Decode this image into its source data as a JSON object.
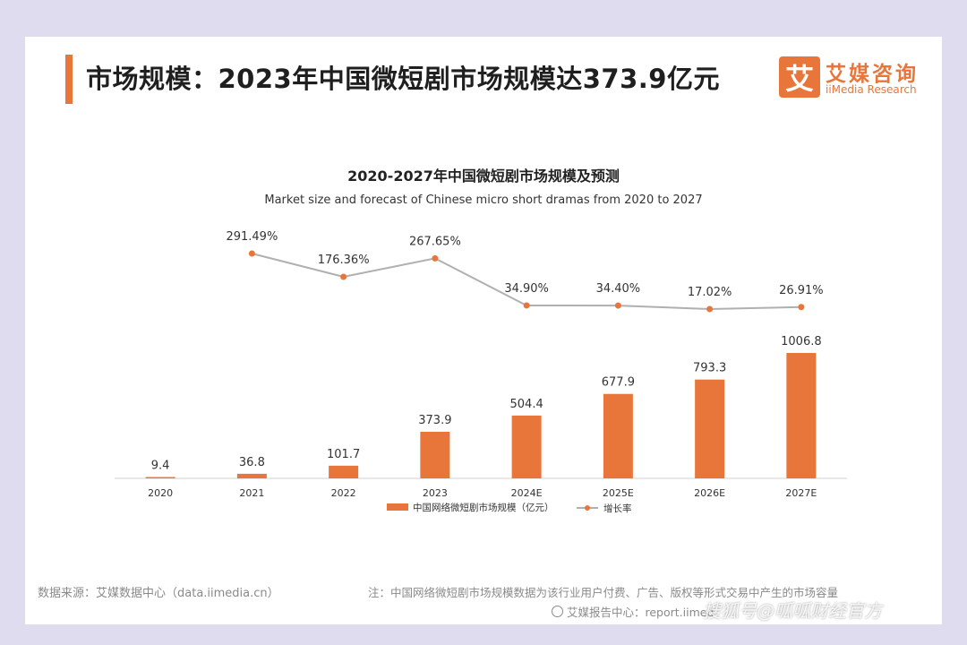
{
  "header": {
    "title": "市场规模：2023年中国微短剧市场规模达373.9亿元",
    "logo_mark": "艾",
    "logo_name": "艾媒咨询",
    "logo_sub": "iiMedia Research"
  },
  "colors": {
    "accent": "#e8763a",
    "line": "#b0b0b0",
    "background": "#e0dcef"
  },
  "chart_data": {
    "type": "bar",
    "title": "2020-2027年中国微短剧市场规模及预测",
    "subtitle": "Market size and forecast of Chinese micro short dramas from 2020 to 2027",
    "categories": [
      "2020",
      "2021",
      "2022",
      "2023",
      "2024E",
      "2025E",
      "2026E",
      "2027E"
    ],
    "series": [
      {
        "name": "中国网络微短剧市场规模（亿元）",
        "type": "bar",
        "values": [
          9.4,
          36.8,
          101.7,
          373.9,
          504.4,
          677.9,
          793.3,
          1006.8
        ],
        "labels": [
          "9.4",
          "36.8",
          "101.7",
          "373.9",
          "504.4",
          "677.9",
          "793.3",
          "1006.8"
        ]
      },
      {
        "name": "增长率",
        "type": "line",
        "values": [
          null,
          291.49,
          176.36,
          267.65,
          34.9,
          34.4,
          17.02,
          26.91
        ],
        "labels": [
          "",
          "291.49%",
          "176.36%",
          "267.65%",
          "34.90%",
          "34.40%",
          "17.02%",
          "26.91%"
        ]
      }
    ],
    "legend_position": "bottom",
    "grid": false
  },
  "footer": {
    "source": "数据来源：艾媒数据中心（data.iimedia.cn）",
    "note": "注：中国网络微短剧市场规模数据为该行业用户付费、广告、版权等形式交易中产生的市场容量",
    "report_center": "艾媒报告中心：report.iimed",
    "watermark": "搜狐号@呱呱财经官方"
  }
}
